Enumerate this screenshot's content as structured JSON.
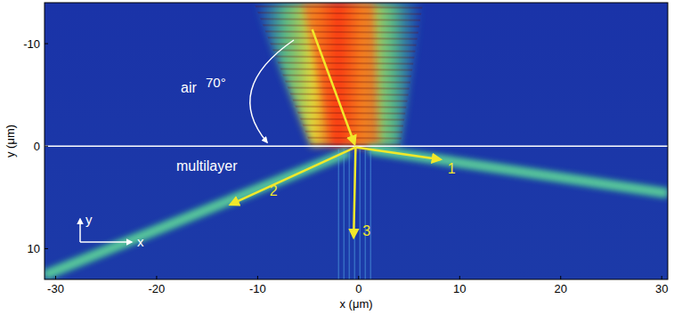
{
  "chart_data": {
    "type": "field_map",
    "xlabel": "x (μm)",
    "ylabel": "y (μm)",
    "xlim": [
      -31.1,
      30.6
    ],
    "ylim": [
      -14,
      13
    ],
    "xticks": [
      -30,
      -20,
      -10,
      0,
      10,
      20,
      30
    ],
    "yticks": [
      -10,
      0,
      10
    ],
    "interface_y": 0,
    "regions": [
      "air",
      "multilayer"
    ],
    "angle_label": "70°",
    "coordinate_axes": [
      "x",
      "y"
    ],
    "series": [
      {
        "x": [
          -2,
          -0.3
        ],
        "values": [
          -14,
          0
        ],
        "color": "#ff3a10"
      },
      {
        "x": [
          1,
          30.6
        ],
        "values": [
          0.3,
          4.6
        ],
        "color": "#4fe08f"
      },
      {
        "x": [
          -1,
          -31.1
        ],
        "values": [
          0.6,
          12.6
        ],
        "color": "#4fe08f"
      },
      {
        "x": [
          -0.4,
          -0.4
        ],
        "values": [
          0.3,
          13
        ],
        "color": "#4f9fe0"
      }
    ],
    "arrows": [
      {
        "x": [
          -4.6,
          -0.4
        ],
        "y": [
          -11.4,
          -0.2
        ],
        "color": "#f2e82a"
      },
      {
        "label": "1",
        "x": [
          -0.3,
          8.1
        ],
        "y": [
          0.1,
          1.3
        ],
        "color": "#f2e82a"
      },
      {
        "label": "2",
        "x": [
          -0.3,
          -12.7
        ],
        "y": [
          0.1,
          5.7
        ],
        "color": "#f2e82a"
      },
      {
        "label": "3",
        "x": [
          -0.3,
          -0.5
        ],
        "y": [
          0.1,
          8.9
        ],
        "color": "#f2e82a"
      }
    ]
  }
}
